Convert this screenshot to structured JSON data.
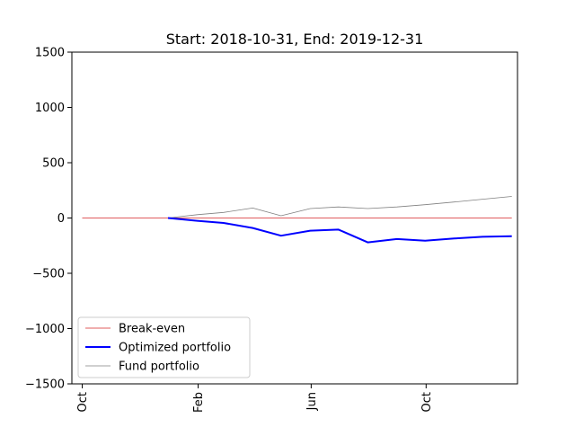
{
  "chart_data": {
    "type": "line",
    "title": "Start: 2018-10-31, End: 2019-12-31",
    "xlabel": "",
    "ylabel": "",
    "ylim": [
      -1500,
      1500
    ],
    "yticks": [
      1500,
      1000,
      500,
      0,
      -500,
      -1000,
      -1500
    ],
    "ytick_labels": [
      "1500",
      "1000",
      "500",
      "0",
      "−500",
      "−1000",
      "−1500"
    ],
    "xlim": [
      "2018-09-20",
      "2020-01-06"
    ],
    "xticks": [
      {
        "label": "Oct",
        "date": "2018-10-01"
      },
      {
        "label": "Feb",
        "date": "2019-02-01"
      },
      {
        "label": "Jun",
        "date": "2019-06-01"
      },
      {
        "label": "Oct",
        "date": "2019-10-01"
      }
    ],
    "grid": false,
    "legend_position": "lower-left",
    "series": [
      {
        "name": "Break-even",
        "color": "#d62728",
        "style": "thin",
        "points": [
          {
            "x": "2018-10-01",
            "y": 0
          },
          {
            "x": "2019-12-31",
            "y": 0
          }
        ]
      },
      {
        "name": "Optimized portfolio",
        "color": "#0000ff",
        "style": "thick",
        "points": [
          {
            "x": "2018-12-31",
            "y": 0
          },
          {
            "x": "2019-01-31",
            "y": -25
          },
          {
            "x": "2019-02-28",
            "y": -45
          },
          {
            "x": "2019-03-31",
            "y": -90
          },
          {
            "x": "2019-04-30",
            "y": -160
          },
          {
            "x": "2019-05-31",
            "y": -115
          },
          {
            "x": "2019-06-30",
            "y": -105
          },
          {
            "x": "2019-07-31",
            "y": -220
          },
          {
            "x": "2019-08-31",
            "y": -190
          },
          {
            "x": "2019-09-30",
            "y": -205
          },
          {
            "x": "2019-10-31",
            "y": -185
          },
          {
            "x": "2019-11-30",
            "y": -170
          },
          {
            "x": "2019-12-31",
            "y": -165
          }
        ]
      },
      {
        "name": "Fund portfolio",
        "color": "#808080",
        "style": "thin",
        "points": [
          {
            "x": "2018-12-31",
            "y": 0
          },
          {
            "x": "2019-01-31",
            "y": 30
          },
          {
            "x": "2019-02-28",
            "y": 50
          },
          {
            "x": "2019-03-31",
            "y": 90
          },
          {
            "x": "2019-04-30",
            "y": 20
          },
          {
            "x": "2019-05-31",
            "y": 85
          },
          {
            "x": "2019-06-30",
            "y": 100
          },
          {
            "x": "2019-07-31",
            "y": 85
          },
          {
            "x": "2019-08-31",
            "y": 100
          },
          {
            "x": "2019-09-30",
            "y": 120
          },
          {
            "x": "2019-10-31",
            "y": 145
          },
          {
            "x": "2019-11-30",
            "y": 170
          },
          {
            "x": "2019-12-31",
            "y": 195
          }
        ]
      }
    ]
  }
}
